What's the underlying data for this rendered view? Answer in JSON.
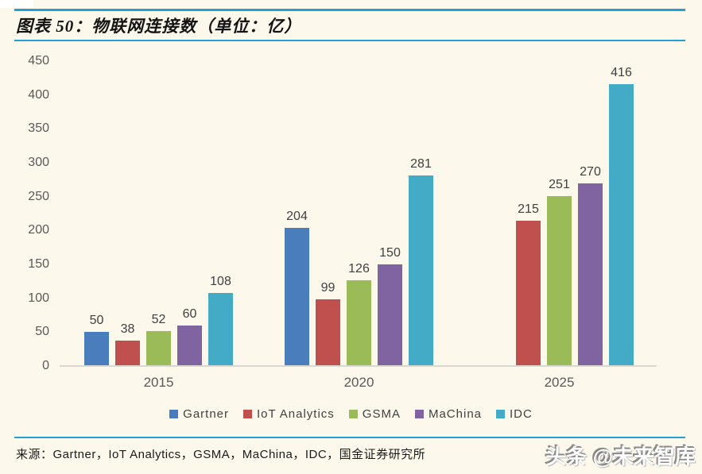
{
  "header": {
    "title": "图表 50：物联网连接数（单位：亿）",
    "accent_line_color": "#229FD6"
  },
  "chart_data": {
    "type": "bar",
    "title": "物联网连接数（单位：亿）",
    "xlabel": "",
    "ylabel": "",
    "categories": [
      "2015",
      "2020",
      "2025"
    ],
    "series": [
      {
        "name": "Gartner",
        "color": "#4A7DBB",
        "values": [
          50,
          204,
          null
        ]
      },
      {
        "name": "IoT Analytics",
        "color": "#C0504D",
        "values": [
          38,
          99,
          215
        ]
      },
      {
        "name": "GSMA",
        "color": "#9BBB59",
        "values": [
          52,
          126,
          251
        ]
      },
      {
        "name": "MaChina",
        "color": "#8064A2",
        "values": [
          60,
          150,
          270
        ]
      },
      {
        "name": "IDC",
        "color": "#44ABC6",
        "values": [
          108,
          281,
          416
        ]
      }
    ],
    "ylim": [
      0,
      450
    ],
    "ytick_step": 50,
    "grid": false,
    "legend_position": "bottom"
  },
  "footer": {
    "source": "来源：Gartner，IoT Analytics，GSMA，MaChina，IDC，国金证券研究所",
    "watermark": "头条 @未来智库"
  }
}
